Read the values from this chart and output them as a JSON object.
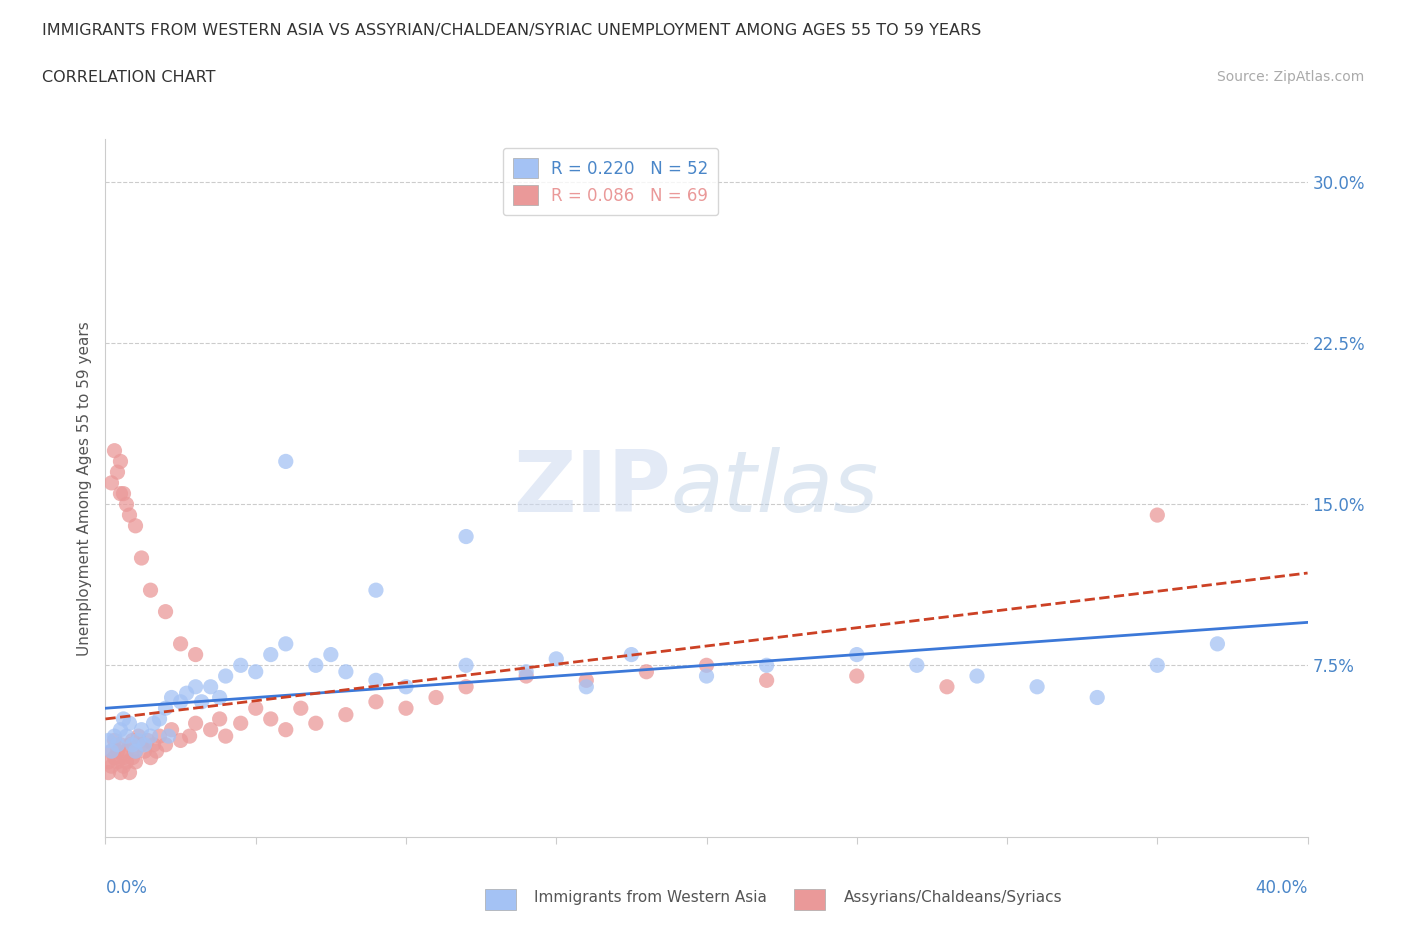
{
  "title": "IMMIGRANTS FROM WESTERN ASIA VS ASSYRIAN/CHALDEAN/SYRIAC UNEMPLOYMENT AMONG AGES 55 TO 59 YEARS",
  "subtitle": "CORRELATION CHART",
  "source": "Source: ZipAtlas.com",
  "ylabel": "Unemployment Among Ages 55 to 59 years",
  "xlim": [
    0.0,
    0.4
  ],
  "ylim": [
    -0.005,
    0.32
  ],
  "yticks_right": [
    0.075,
    0.15,
    0.225,
    0.3
  ],
  "ytick_labels_right": [
    "7.5%",
    "15.0%",
    "22.5%",
    "30.0%"
  ],
  "hlines": [
    0.075,
    0.15,
    0.225,
    0.3
  ],
  "blue_color": "#a4c2f4",
  "pink_color": "#ea9999",
  "blue_line_color": "#3c78d8",
  "pink_line_color": "#cc4125",
  "legend_blue_r": "R = 0.220",
  "legend_blue_n": "N = 52",
  "legend_pink_r": "R = 0.086",
  "legend_pink_n": "N = 69",
  "watermark": "ZIPatlas",
  "blue_x": [
    0.001,
    0.002,
    0.003,
    0.004,
    0.005,
    0.006,
    0.007,
    0.008,
    0.009,
    0.01,
    0.011,
    0.012,
    0.013,
    0.015,
    0.016,
    0.018,
    0.02,
    0.021,
    0.022,
    0.025,
    0.027,
    0.03,
    0.032,
    0.035,
    0.038,
    0.04,
    0.045,
    0.05,
    0.055,
    0.06,
    0.07,
    0.075,
    0.08,
    0.09,
    0.1,
    0.12,
    0.14,
    0.15,
    0.16,
    0.175,
    0.2,
    0.22,
    0.25,
    0.27,
    0.29,
    0.31,
    0.33,
    0.35,
    0.37,
    0.12,
    0.09,
    0.06
  ],
  "blue_y": [
    0.04,
    0.035,
    0.042,
    0.038,
    0.045,
    0.05,
    0.042,
    0.048,
    0.038,
    0.035,
    0.04,
    0.045,
    0.038,
    0.042,
    0.048,
    0.05,
    0.055,
    0.042,
    0.06,
    0.058,
    0.062,
    0.065,
    0.058,
    0.065,
    0.06,
    0.07,
    0.075,
    0.072,
    0.08,
    0.085,
    0.075,
    0.08,
    0.072,
    0.068,
    0.065,
    0.075,
    0.072,
    0.078,
    0.065,
    0.08,
    0.07,
    0.075,
    0.08,
    0.075,
    0.07,
    0.065,
    0.06,
    0.075,
    0.085,
    0.135,
    0.11,
    0.17
  ],
  "pink_x": [
    0.001,
    0.001,
    0.002,
    0.002,
    0.003,
    0.003,
    0.004,
    0.004,
    0.005,
    0.005,
    0.006,
    0.006,
    0.007,
    0.007,
    0.008,
    0.008,
    0.009,
    0.009,
    0.01,
    0.01,
    0.011,
    0.012,
    0.013,
    0.014,
    0.015,
    0.016,
    0.017,
    0.018,
    0.02,
    0.022,
    0.025,
    0.028,
    0.03,
    0.035,
    0.038,
    0.04,
    0.045,
    0.05,
    0.055,
    0.06,
    0.065,
    0.07,
    0.08,
    0.09,
    0.1,
    0.11,
    0.12,
    0.14,
    0.16,
    0.18,
    0.2,
    0.22,
    0.25,
    0.28,
    0.002,
    0.003,
    0.004,
    0.005,
    0.005,
    0.006,
    0.007,
    0.008,
    0.01,
    0.012,
    0.015,
    0.02,
    0.025,
    0.03,
    0.35
  ],
  "pink_y": [
    0.03,
    0.025,
    0.035,
    0.028,
    0.032,
    0.04,
    0.035,
    0.03,
    0.038,
    0.025,
    0.032,
    0.028,
    0.035,
    0.03,
    0.038,
    0.025,
    0.032,
    0.04,
    0.035,
    0.03,
    0.042,
    0.038,
    0.035,
    0.04,
    0.032,
    0.038,
    0.035,
    0.042,
    0.038,
    0.045,
    0.04,
    0.042,
    0.048,
    0.045,
    0.05,
    0.042,
    0.048,
    0.055,
    0.05,
    0.045,
    0.055,
    0.048,
    0.052,
    0.058,
    0.055,
    0.06,
    0.065,
    0.07,
    0.068,
    0.072,
    0.075,
    0.068,
    0.07,
    0.065,
    0.16,
    0.175,
    0.165,
    0.17,
    0.155,
    0.155,
    0.15,
    0.145,
    0.14,
    0.125,
    0.11,
    0.1,
    0.085,
    0.08,
    0.145
  ],
  "background_color": "#ffffff",
  "grid_color": "#cccccc",
  "title_color": "#333333",
  "axis_color": "#4a86c8"
}
